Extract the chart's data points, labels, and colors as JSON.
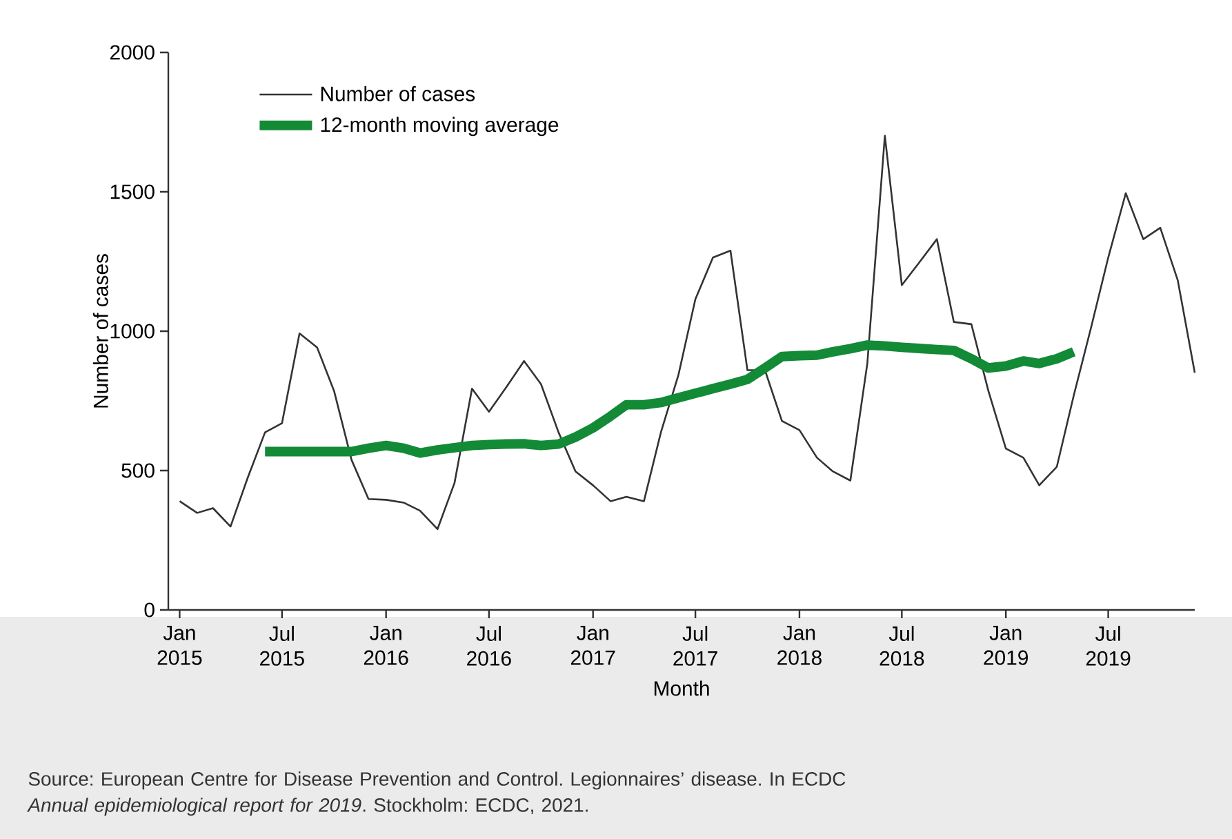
{
  "chart_data": {
    "type": "line",
    "xlabel": "Month",
    "ylabel": "Number of cases",
    "x": [
      "2015-01",
      "2015-02",
      "2015-03",
      "2015-04",
      "2015-05",
      "2015-06",
      "2015-07",
      "2015-08",
      "2015-09",
      "2015-10",
      "2015-11",
      "2015-12",
      "2016-01",
      "2016-02",
      "2016-03",
      "2016-04",
      "2016-05",
      "2016-06",
      "2016-07",
      "2016-08",
      "2016-09",
      "2016-10",
      "2016-11",
      "2016-12",
      "2017-01",
      "2017-02",
      "2017-03",
      "2017-04",
      "2017-05",
      "2017-06",
      "2017-07",
      "2017-08",
      "2017-09",
      "2017-10",
      "2017-11",
      "2017-12",
      "2018-01",
      "2018-02",
      "2018-03",
      "2018-04",
      "2018-05",
      "2018-06",
      "2018-07",
      "2018-08",
      "2018-09",
      "2018-10",
      "2018-11",
      "2018-12",
      "2019-01",
      "2019-02",
      "2019-03",
      "2019-04",
      "2019-05",
      "2019-06",
      "2019-07",
      "2019-08",
      "2019-09",
      "2019-10",
      "2019-11",
      "2019-12"
    ],
    "series": [
      {
        "name": "Number of cases",
        "color": "#333333",
        "values": [
          390,
          348,
          365,
          299,
          472,
          637,
          670,
          992,
          942,
          786,
          538,
          398,
          395,
          385,
          356,
          290,
          455,
          794,
          711,
          800,
          893,
          810,
          637,
          497,
          447,
          390,
          406,
          390,
          637,
          843,
          1115,
          1264,
          1289,
          860,
          860,
          678,
          645,
          546,
          497,
          464,
          884,
          1701,
          1165,
          1247,
          1330,
          1033,
          1025,
          786,
          579,
          546,
          447,
          513,
          769,
          1016,
          1264,
          1495,
          1330,
          1371,
          1182,
          851
        ]
      },
      {
        "name": "12-month moving average",
        "color": "#138a36",
        "values": [
          null,
          null,
          null,
          null,
          null,
          568,
          568,
          568,
          568,
          568,
          568,
          580,
          590,
          580,
          563,
          574,
          582,
          590,
          593,
          595,
          596,
          590,
          595,
          620,
          653,
          695,
          736,
          736,
          744,
          761,
          777,
          794,
          810,
          827,
          868,
          909,
          912,
          914,
          926,
          937,
          950,
          947,
          942,
          938,
          934,
          931,
          901,
          868,
          875,
          893,
          884,
          901,
          926,
          null,
          null,
          null,
          null,
          null,
          null,
          null
        ]
      }
    ],
    "xlim": [
      "2014-12-12",
      "2019-12-01"
    ],
    "xticks": [
      {
        "value": "2015-01",
        "label": "Jan 2015"
      },
      {
        "value": "2015-07",
        "label": "Jul 2015"
      },
      {
        "value": "2016-01",
        "label": "Jan 2016"
      },
      {
        "value": "2016-07",
        "label": "Jul 2016"
      },
      {
        "value": "2017-01",
        "label": "Jan 2017"
      },
      {
        "value": "2017-07",
        "label": "Jul 2017"
      },
      {
        "value": "2018-01",
        "label": "Jan 2018"
      },
      {
        "value": "2018-07",
        "label": "Jul 2018"
      },
      {
        "value": "2019-01",
        "label": "Jan 2019"
      },
      {
        "value": "2019-07",
        "label": "Jul 2019"
      }
    ],
    "ylim": [
      0,
      2000
    ],
    "yticks": [
      0,
      500,
      1000,
      1500,
      2000
    ],
    "grid": false,
    "legend": "top left",
    "marker": "none",
    "line_style": "solid",
    "annotations": [
      "Source: European Centre for Disease Prevention and Control. Legionnaires’ disease. In ECDC *Annual epidemiological report for 2019*. Stockholm: ECDC, 2021."
    ]
  }
}
